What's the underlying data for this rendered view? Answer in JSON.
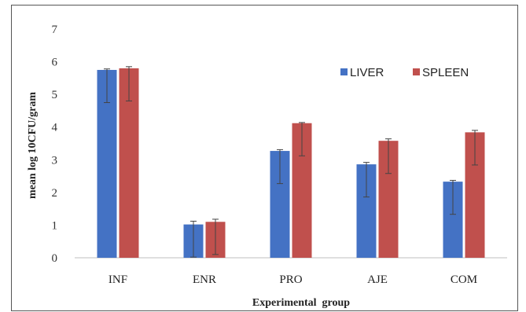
{
  "chart_data": {
    "type": "bar",
    "title": "",
    "xlabel": "Experimental  group",
    "ylabel": "mean log 10CFU/gram",
    "categories": [
      "INF",
      "ENR",
      "PRO",
      "AJE",
      "COM"
    ],
    "ylim": [
      0,
      7
    ],
    "yticks": [
      0,
      1,
      2,
      3,
      4,
      5,
      6,
      7
    ],
    "grid": false,
    "legend_position": "top-right",
    "series": [
      {
        "name": "LIVER",
        "color": "#4472C4",
        "values": [
          5.75,
          1.02,
          3.27,
          2.86,
          2.33
        ],
        "error_minus": [
          1.0,
          1.0,
          1.0,
          1.0,
          1.0
        ],
        "error_plus": [
          0.03,
          0.1,
          0.04,
          0.06,
          0.04
        ]
      },
      {
        "name": "SPLEEN",
        "color": "#C0504D",
        "values": [
          5.8,
          1.1,
          4.12,
          3.58,
          3.84
        ],
        "error_minus": [
          1.0,
          1.0,
          1.0,
          1.0,
          1.0
        ],
        "error_plus": [
          0.05,
          0.08,
          0.02,
          0.06,
          0.06
        ]
      }
    ]
  }
}
